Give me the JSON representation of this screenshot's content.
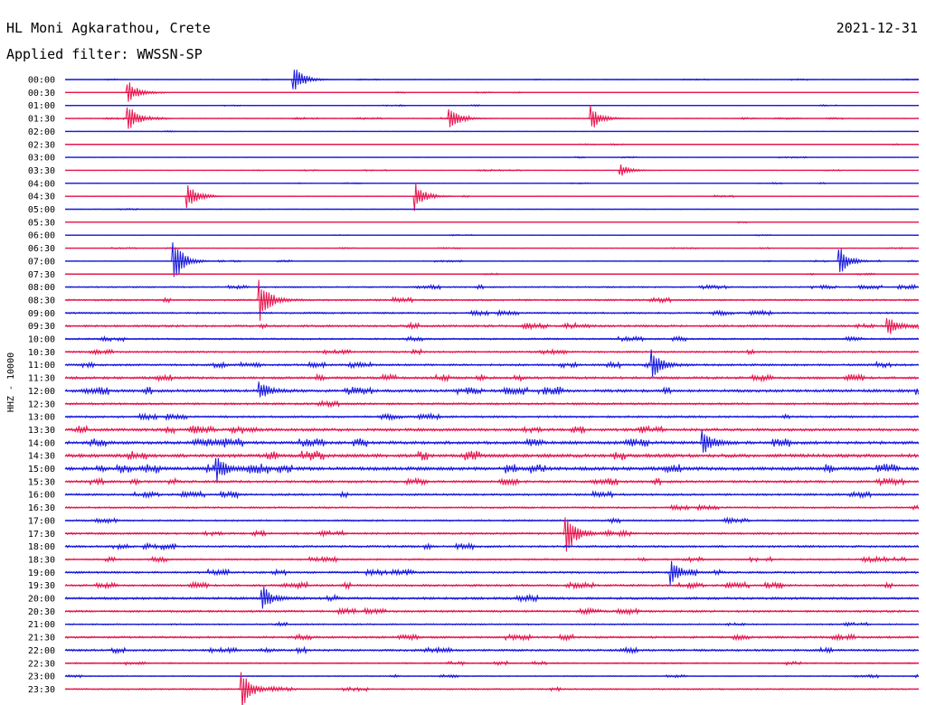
{
  "header": {
    "station": "HL Moni Agkarathou, Crete",
    "filter": "Applied filter: WWSSN-SP",
    "date": "2021-12-31"
  },
  "chart_data": {
    "type": "line",
    "title": "HL Moni Agkarathou, Crete",
    "subtitle": "Applied filter: WWSSN-SP",
    "date": "2021-12-31",
    "ylabel": "HHZ - 10000",
    "trace_colors": [
      "#1a1adc",
      "#e8164f"
    ],
    "rows": [
      "00:00",
      "00:30",
      "01:00",
      "01:30",
      "02:00",
      "02:30",
      "03:00",
      "03:30",
      "04:00",
      "04:30",
      "05:00",
      "05:30",
      "06:00",
      "06:30",
      "07:00",
      "07:30",
      "08:00",
      "08:30",
      "09:00",
      "09:30",
      "10:00",
      "10:30",
      "11:00",
      "11:30",
      "12:00",
      "12:30",
      "13:00",
      "13:30",
      "14:00",
      "14:30",
      "15:00",
      "15:30",
      "16:00",
      "16:30",
      "17:00",
      "17:30",
      "18:00",
      "18:30",
      "19:00",
      "19:30",
      "20:00",
      "20:30",
      "21:00",
      "21:30",
      "22:00",
      "22:30",
      "23:00",
      "23:30"
    ],
    "noise_level": [
      0.15,
      0.15,
      0.15,
      0.2,
      0.15,
      0.15,
      0.15,
      0.15,
      0.15,
      0.2,
      0.15,
      0.15,
      0.15,
      0.15,
      0.2,
      0.2,
      0.4,
      0.5,
      0.5,
      0.6,
      0.5,
      0.5,
      0.6,
      0.7,
      0.8,
      0.6,
      0.6,
      0.8,
      0.9,
      1.0,
      1.0,
      0.7,
      0.6,
      0.5,
      0.5,
      0.6,
      0.6,
      0.5,
      0.6,
      0.6,
      0.7,
      0.6,
      0.4,
      0.6,
      0.6,
      0.4,
      0.3,
      0.4
    ],
    "events": [
      {
        "row": 0,
        "minute": 8.0,
        "amplitude": 20
      },
      {
        "row": 1,
        "minute": 2.2,
        "amplitude": 14
      },
      {
        "row": 3,
        "minute": 2.2,
        "amplitude": 18
      },
      {
        "row": 3,
        "minute": 13.5,
        "amplitude": 14
      },
      {
        "row": 3,
        "minute": 18.5,
        "amplitude": 14
      },
      {
        "row": 7,
        "minute": 19.5,
        "amplitude": 8
      },
      {
        "row": 9,
        "minute": 4.3,
        "amplitude": 14
      },
      {
        "row": 9,
        "minute": 12.3,
        "amplitude": 16
      },
      {
        "row": 14,
        "minute": 3.8,
        "amplitude": 28
      },
      {
        "row": 14,
        "minute": 27.2,
        "amplitude": 20
      },
      {
        "row": 17,
        "minute": 6.8,
        "amplitude": 30
      },
      {
        "row": 19,
        "minute": 28.9,
        "amplitude": 12
      },
      {
        "row": 22,
        "minute": 20.6,
        "amplitude": 18
      },
      {
        "row": 24,
        "minute": 6.8,
        "amplitude": 12
      },
      {
        "row": 28,
        "minute": 22.4,
        "amplitude": 14
      },
      {
        "row": 30,
        "minute": 5.3,
        "amplitude": 16
      },
      {
        "row": 35,
        "minute": 17.6,
        "amplitude": 28
      },
      {
        "row": 38,
        "minute": 21.3,
        "amplitude": 14
      },
      {
        "row": 40,
        "minute": 6.9,
        "amplitude": 16
      },
      {
        "row": 47,
        "minute": 6.2,
        "amplitude": 24
      }
    ]
  }
}
